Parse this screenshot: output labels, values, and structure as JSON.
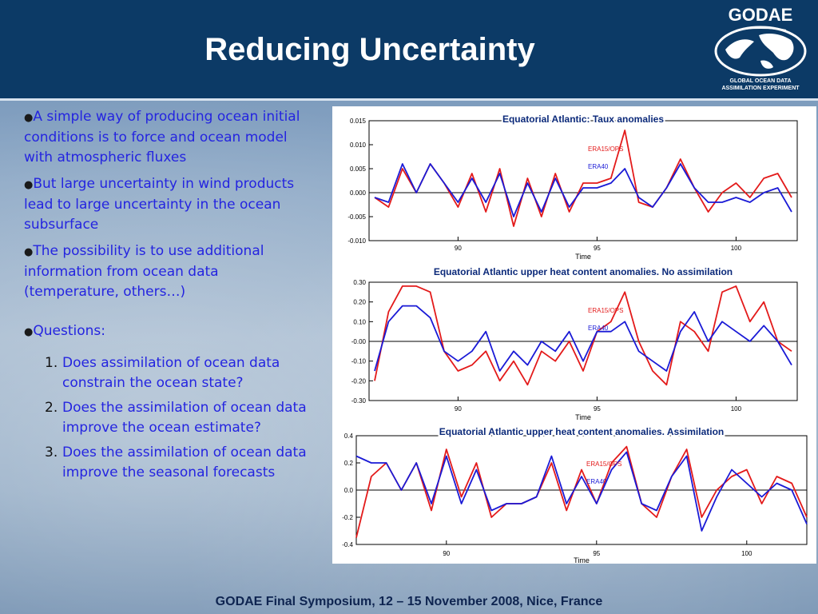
{
  "slide": {
    "title": "Reducing Uncertainty",
    "footer": "GODAE Final Symposium, 12 – 15 November 2008, Nice, France",
    "logo": {
      "name": "GODAE",
      "sub1": "GLOBAL OCEAN DATA",
      "sub2": "ASSIMILATION EXPERIMENT"
    },
    "bullets": [
      "A simple way of producing ocean initial conditions is to force and ocean model with atmospheric fluxes",
      "But large uncertainty in wind products lead to large uncertainty in the ocean subsurface",
      "The possibility is to use  additional information from ocean data (temperature, others…)",
      "Questions:"
    ],
    "questions": [
      {
        "num": "1.",
        "text": "Does assimilation of ocean data constrain the ocean state?"
      },
      {
        "num": "2.",
        "text": "Does the assimilation of ocean data improve the ocean estimate?"
      },
      {
        "num": "3.",
        "text": "Does the assimilation of ocean data  improve the seasonal forecasts"
      }
    ],
    "colors": {
      "header": "#0c3a66",
      "bullet_text": "#2424e0",
      "era15": "#e31a1a",
      "era40": "#1a1ad6"
    }
  },
  "chart_data": [
    {
      "type": "line",
      "title": "Equatorial Atlantic: Taux anomalies",
      "xlabel": "Time",
      "ylabel": "",
      "xlim": [
        86.8,
        102.2
      ],
      "ylim": [
        -0.01,
        0.015
      ],
      "xticks": [
        90,
        95,
        100
      ],
      "yticks": [
        -0.01,
        -0.005,
        0.0,
        0.005,
        0.01,
        0.015
      ],
      "ytick_labels": [
        "-0.010",
        "-0.005",
        "0.000",
        "0.005",
        "0.010",
        "0.015"
      ],
      "legend": "top-center",
      "series": [
        {
          "name": "ERA15/OPS",
          "color": "#e31a1a",
          "x": [
            87.0,
            87.5,
            88.0,
            88.5,
            89.0,
            89.5,
            90.0,
            90.5,
            91.0,
            91.5,
            92.0,
            92.5,
            93.0,
            93.5,
            94.0,
            94.5,
            95.0,
            95.5,
            96.0,
            96.5,
            97.0,
            97.5,
            98.0,
            98.5,
            99.0,
            99.5,
            100.0,
            100.5,
            101.0,
            101.5,
            102.0
          ],
          "values": [
            -0.001,
            -0.003,
            0.005,
            0.0,
            0.006,
            0.002,
            -0.003,
            0.004,
            -0.004,
            0.005,
            -0.007,
            0.003,
            -0.005,
            0.004,
            -0.004,
            0.002,
            0.002,
            0.003,
            0.013,
            -0.002,
            -0.003,
            0.001,
            0.007,
            0.001,
            -0.004,
            0.0,
            0.002,
            -0.001,
            0.003,
            0.004,
            -0.001
          ]
        },
        {
          "name": "ERA40",
          "color": "#1a1ad6",
          "x": [
            87.0,
            87.5,
            88.0,
            88.5,
            89.0,
            89.5,
            90.0,
            90.5,
            91.0,
            91.5,
            92.0,
            92.5,
            93.0,
            93.5,
            94.0,
            94.5,
            95.0,
            95.5,
            96.0,
            96.5,
            97.0,
            97.5,
            98.0,
            98.5,
            99.0,
            99.5,
            100.0,
            100.5,
            101.0,
            101.5,
            102.0
          ],
          "values": [
            -0.001,
            -0.002,
            0.006,
            0.0,
            0.006,
            0.002,
            -0.002,
            0.003,
            -0.002,
            0.004,
            -0.005,
            0.002,
            -0.004,
            0.003,
            -0.003,
            0.001,
            0.001,
            0.002,
            0.005,
            -0.001,
            -0.003,
            0.001,
            0.006,
            0.001,
            -0.002,
            -0.002,
            -0.001,
            -0.002,
            0.0,
            0.001,
            -0.004
          ]
        }
      ]
    },
    {
      "type": "line",
      "title": "Equatorial Atlantic upper heat content  anomalies. No assimilation",
      "xlabel": "Time",
      "ylabel": "",
      "xlim": [
        86.8,
        102.2
      ],
      "ylim": [
        -0.3,
        0.3
      ],
      "xticks": [
        90,
        95,
        100
      ],
      "yticks": [
        -0.3,
        -0.2,
        -0.1,
        0.0,
        0.1,
        0.2,
        0.3
      ],
      "ytick_labels": [
        "-0.30",
        "-0.20",
        "-0.10",
        "-0.00",
        "0.10",
        "0.20",
        "0.30"
      ],
      "legend": "top-center",
      "series": [
        {
          "name": "ERA15/OPS",
          "color": "#e31a1a",
          "x": [
            87.0,
            87.5,
            88.0,
            88.5,
            89.0,
            89.5,
            90.0,
            90.5,
            91.0,
            91.5,
            92.0,
            92.5,
            93.0,
            93.5,
            94.0,
            94.5,
            95.0,
            95.5,
            96.0,
            96.5,
            97.0,
            97.5,
            98.0,
            98.5,
            99.0,
            99.5,
            100.0,
            100.5,
            101.0,
            101.5,
            102.0
          ],
          "values": [
            -0.2,
            0.15,
            0.28,
            0.28,
            0.25,
            -0.05,
            -0.15,
            -0.12,
            -0.05,
            -0.2,
            -0.1,
            -0.22,
            -0.05,
            -0.1,
            0.0,
            -0.15,
            0.05,
            0.1,
            0.25,
            0.0,
            -0.15,
            -0.22,
            0.1,
            0.05,
            -0.05,
            0.25,
            0.28,
            0.1,
            0.2,
            0.0,
            -0.05
          ]
        },
        {
          "name": "ERA40",
          "color": "#1a1ad6",
          "x": [
            87.0,
            87.5,
            88.0,
            88.5,
            89.0,
            89.5,
            90.0,
            90.5,
            91.0,
            91.5,
            92.0,
            92.5,
            93.0,
            93.5,
            94.0,
            94.5,
            95.0,
            95.5,
            96.0,
            96.5,
            97.0,
            97.5,
            98.0,
            98.5,
            99.0,
            99.5,
            100.0,
            100.5,
            101.0,
            101.5,
            102.0
          ],
          "values": [
            -0.15,
            0.1,
            0.18,
            0.18,
            0.12,
            -0.05,
            -0.1,
            -0.05,
            0.05,
            -0.15,
            -0.05,
            -0.12,
            0.0,
            -0.05,
            0.05,
            -0.1,
            0.05,
            0.05,
            0.1,
            -0.05,
            -0.1,
            -0.15,
            0.05,
            0.15,
            0.0,
            0.1,
            0.05,
            0.0,
            0.08,
            0.0,
            -0.12
          ]
        }
      ]
    },
    {
      "type": "line",
      "title": "Equatorial  Atlantic upper heat content anomalies.  Assimilation",
      "xlabel": "Time",
      "ylabel": "",
      "xlim": [
        87.0,
        102.0
      ],
      "ylim": [
        -0.4,
        0.4
      ],
      "xticks": [
        90,
        95,
        100
      ],
      "yticks": [
        -0.4,
        -0.2,
        0.0,
        0.2,
        0.4
      ],
      "ytick_labels": [
        "-0.4",
        "-0.2",
        "0.0",
        "0.2",
        "0.4"
      ],
      "legend": "top-center",
      "series": [
        {
          "name": "ERA15/OPS",
          "color": "#e31a1a",
          "x": [
            87.0,
            87.5,
            88.0,
            88.5,
            89.0,
            89.5,
            90.0,
            90.5,
            91.0,
            91.5,
            92.0,
            92.5,
            93.0,
            93.5,
            94.0,
            94.5,
            95.0,
            95.5,
            96.0,
            96.5,
            97.0,
            97.5,
            98.0,
            98.5,
            99.0,
            99.5,
            100.0,
            100.5,
            101.0,
            101.5,
            102.0
          ],
          "values": [
            -0.35,
            0.1,
            0.2,
            0.0,
            0.2,
            -0.15,
            0.3,
            -0.05,
            0.2,
            -0.2,
            -0.1,
            -0.1,
            -0.05,
            0.2,
            -0.15,
            0.15,
            -0.1,
            0.2,
            0.32,
            -0.1,
            -0.2,
            0.1,
            0.3,
            -0.2,
            0.0,
            0.1,
            0.15,
            -0.1,
            0.1,
            0.05,
            -0.2
          ]
        },
        {
          "name": "ERA40",
          "color": "#1a1ad6",
          "x": [
            87.0,
            87.5,
            88.0,
            88.5,
            89.0,
            89.5,
            90.0,
            90.5,
            91.0,
            91.5,
            92.0,
            92.5,
            93.0,
            93.5,
            94.0,
            94.5,
            95.0,
            95.5,
            96.0,
            96.5,
            97.0,
            97.5,
            98.0,
            98.5,
            99.0,
            99.5,
            100.0,
            100.5,
            101.0,
            101.5,
            102.0
          ],
          "values": [
            0.25,
            0.2,
            0.2,
            0.0,
            0.2,
            -0.1,
            0.25,
            -0.1,
            0.15,
            -0.15,
            -0.1,
            -0.1,
            -0.05,
            0.25,
            -0.1,
            0.1,
            -0.1,
            0.15,
            0.28,
            -0.1,
            -0.15,
            0.1,
            0.25,
            -0.3,
            -0.05,
            0.15,
            0.05,
            -0.05,
            0.05,
            0.0,
            -0.25
          ]
        }
      ]
    }
  ]
}
